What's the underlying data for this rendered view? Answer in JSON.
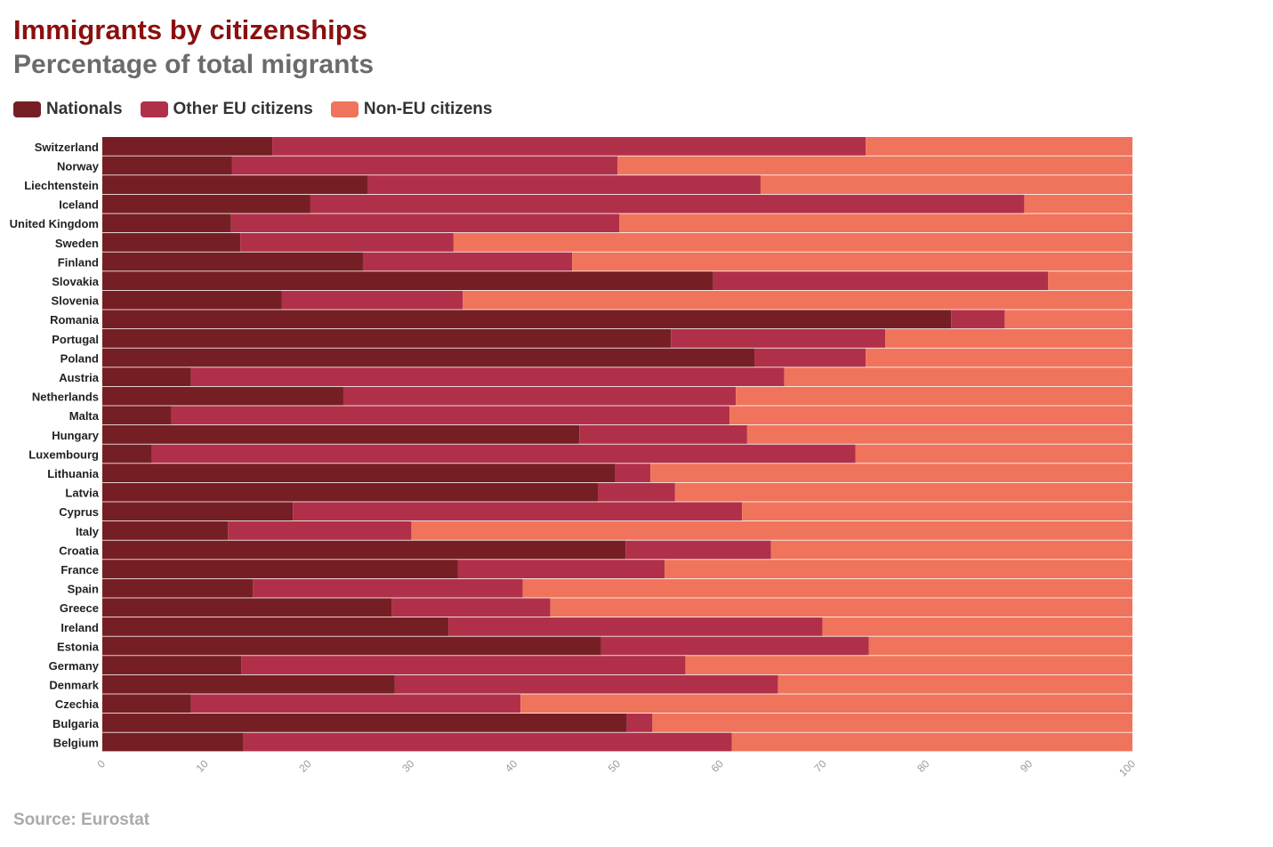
{
  "title": "Immigrants by citizenships",
  "subtitle": "Percentage of total migrants",
  "source": "Source: Eurostat",
  "legend": [
    {
      "label": "Nationals",
      "color": "#751f24"
    },
    {
      "label": "Other EU citizens",
      "color": "#b0304a"
    },
    {
      "label": "Non-EU citizens",
      "color": "#f0745c"
    }
  ],
  "chart_data": {
    "type": "bar",
    "orientation": "horizontal",
    "stacked": true,
    "title": "Immigrants by citizenships",
    "subtitle": "Percentage of total migrants",
    "xlim": [
      0,
      100
    ],
    "xticks": [
      0,
      10,
      20,
      30,
      40,
      50,
      60,
      70,
      80,
      90,
      100
    ],
    "legend_position": "top-left",
    "categories": [
      "Switzerland",
      "Norway",
      "Liechtenstein",
      "Iceland",
      "United Kingdom",
      "Sweden",
      "Finland",
      "Slovakia",
      "Slovenia",
      "Romania",
      "Portugal",
      "Poland",
      "Austria",
      "Netherlands",
      "Malta",
      "Hungary",
      "Luxembourg",
      "Lithuania",
      "Latvia",
      "Cyprus",
      "Italy",
      "Croatia",
      "France",
      "Spain",
      "Greece",
      "Ireland",
      "Estonia",
      "Germany",
      "Denmark",
      "Czechia",
      "Bulgaria",
      "Belgium"
    ],
    "series": [
      {
        "name": "Nationals",
        "color": "#751f24",
        "values": [
          16.5,
          12.6,
          25.8,
          20.2,
          12.5,
          13.4,
          25.3,
          59.3,
          17.4,
          82.4,
          55.2,
          63.3,
          8.6,
          23.4,
          6.7,
          46.3,
          4.8,
          49.8,
          48.1,
          18.5,
          12.2,
          50.8,
          34.5,
          14.6,
          28.1,
          33.6,
          48.4,
          13.5,
          28.4,
          8.6,
          50.9,
          13.7
        ]
      },
      {
        "name": "Other EU citizens",
        "color": "#b0304a",
        "values": [
          57.6,
          37.4,
          38.1,
          69.3,
          37.7,
          20.7,
          20.3,
          32.5,
          17.6,
          5.2,
          20.8,
          10.8,
          57.6,
          38.1,
          54.2,
          16.3,
          68.3,
          3.4,
          7.5,
          43.6,
          17.8,
          14.1,
          20.1,
          26.2,
          15.4,
          36.3,
          26.0,
          43.1,
          37.2,
          32.0,
          2.5,
          47.4
        ]
      },
      {
        "name": "Non-EU citizens",
        "color": "#f0745c",
        "values": [
          25.9,
          50.0,
          36.1,
          10.5,
          49.8,
          65.9,
          54.4,
          8.2,
          65.0,
          12.4,
          24.0,
          25.9,
          33.8,
          38.5,
          39.1,
          37.4,
          26.9,
          46.8,
          44.4,
          37.9,
          70.0,
          35.1,
          45.4,
          59.2,
          56.5,
          30.1,
          25.6,
          43.4,
          34.4,
          59.4,
          46.6,
          38.9
        ]
      }
    ]
  }
}
